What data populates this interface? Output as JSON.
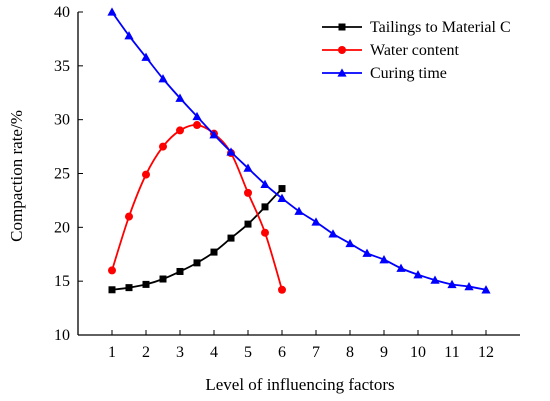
{
  "chart_data": {
    "type": "line",
    "xlabel": "Level of influencing factors",
    "ylabel": "Compaction rate/%",
    "xlim": [
      0,
      13
    ],
    "ylim": [
      10,
      40
    ],
    "xticks": [
      1,
      2,
      3,
      4,
      5,
      6,
      7,
      8,
      9,
      10,
      11,
      12
    ],
    "yticks": [
      10,
      15,
      20,
      25,
      30,
      35,
      40
    ],
    "legend_position": "top-right",
    "grid": false,
    "series": [
      {
        "name": "Tailings to Material C",
        "color": "#000000",
        "marker": "square",
        "x": [
          1,
          1.5,
          2,
          2.5,
          3,
          3.5,
          4,
          4.5,
          5,
          5.5,
          6
        ],
        "y": [
          14.2,
          14.4,
          14.7,
          15.2,
          15.9,
          16.7,
          17.7,
          19.0,
          20.3,
          21.9,
          23.6
        ]
      },
      {
        "name": "Water content",
        "color": "#ff0000",
        "marker": "circle",
        "x": [
          1,
          1.5,
          2,
          2.5,
          3,
          3.5,
          4,
          4.5,
          5,
          5.5,
          6
        ],
        "y": [
          16.0,
          21.0,
          24.9,
          27.5,
          29.0,
          29.5,
          28.7,
          26.9,
          23.2,
          19.5,
          14.2
        ]
      },
      {
        "name": "Curing time",
        "color": "#0000ff",
        "marker": "triangle",
        "x": [
          1,
          1.5,
          2,
          2.5,
          3,
          3.5,
          4,
          4.5,
          5,
          5.5,
          6,
          6.5,
          7,
          7.5,
          8,
          8.5,
          9,
          9.5,
          10,
          10.5,
          11,
          11.5,
          12
        ],
        "y": [
          40.0,
          37.8,
          35.8,
          33.8,
          32.0,
          30.3,
          28.6,
          27.0,
          25.5,
          24.0,
          22.7,
          21.5,
          20.5,
          19.4,
          18.5,
          17.6,
          17.0,
          16.2,
          15.6,
          15.1,
          14.7,
          14.5,
          14.2
        ]
      }
    ]
  }
}
